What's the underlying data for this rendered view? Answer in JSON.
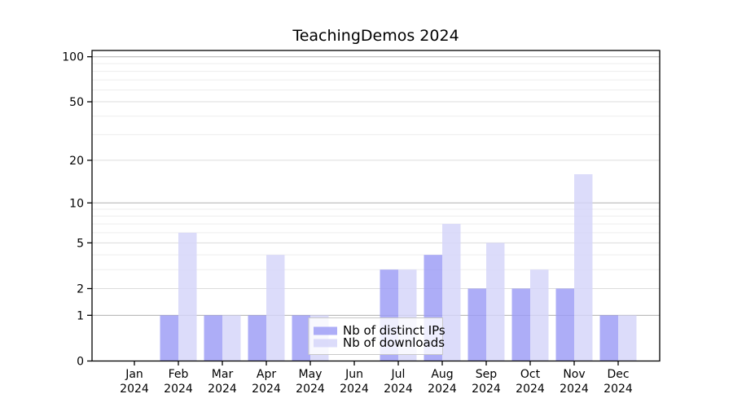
{
  "page": {
    "background": "#ffffff"
  },
  "chart_data": {
    "type": "bar",
    "title": "TeachingDemos 2024",
    "categories": [
      "Jan",
      "Feb",
      "Mar",
      "Apr",
      "May",
      "Jun",
      "Jul",
      "Aug",
      "Sep",
      "Oct",
      "Nov",
      "Dec"
    ],
    "x_sub_label": "2024",
    "series": [
      {
        "name": "Nb of distinct IPs",
        "color": "#9b9bf5",
        "values": [
          0,
          1,
          1,
          1,
          1,
          0,
          3,
          4,
          2,
          2,
          2,
          1
        ]
      },
      {
        "name": "Nb of downloads",
        "color": "#d4d4f9",
        "values": [
          0,
          6,
          1,
          4,
          1,
          0,
          3,
          7,
          5,
          3,
          16,
          1
        ]
      }
    ],
    "bar_opacity": 0.82,
    "scale": "log1p",
    "xlabel": "",
    "ylabel": "",
    "ylim": [
      0,
      100
    ],
    "yticks": [
      0,
      1,
      2,
      5,
      10,
      20,
      50,
      100
    ],
    "minor_gridlines": [
      3,
      4,
      6,
      7,
      8,
      9,
      30,
      40,
      60,
      70,
      80,
      90
    ],
    "grid": true,
    "legend_position": "inside-bottom",
    "colors": {
      "grid_power10": "#b0b0b0",
      "grid_major": "#dcdcdc",
      "grid_minor": "#ededed",
      "axis": "#000000",
      "text": "#000000",
      "legend_border": "#c9c9c9",
      "legend_bg_fill": "#ffffff",
      "legend_bg_opacity": 0.8
    }
  }
}
